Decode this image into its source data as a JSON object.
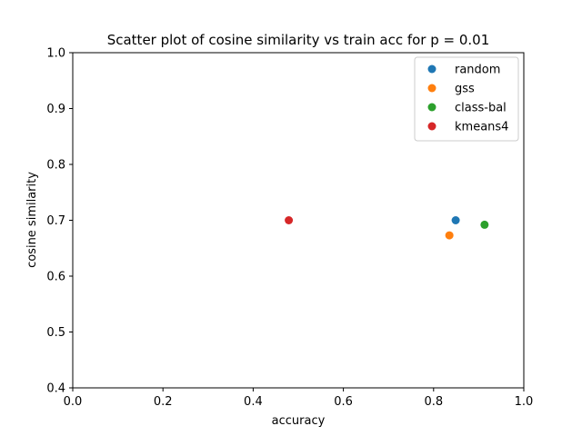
{
  "chart_data": {
    "type": "scatter",
    "title": "Scatter plot of cosine similarity vs train acc for p = 0.01",
    "xlabel": "accuracy",
    "ylabel": "cosine similarity",
    "xlim": [
      0.0,
      1.0
    ],
    "ylim": [
      0.4,
      1.0
    ],
    "xticks": [
      "0.0",
      "0.2",
      "0.4",
      "0.6",
      "0.8",
      "1.0"
    ],
    "yticks": [
      "0.4",
      "0.5",
      "0.6",
      "0.7",
      "0.8",
      "0.9",
      "1.0"
    ],
    "grid": false,
    "legend_position": "top-right",
    "series": [
      {
        "name": "random",
        "color": "#1f77b4",
        "points": [
          [
            0.849,
            0.7
          ]
        ]
      },
      {
        "name": "gss",
        "color": "#ff7f0e",
        "points": [
          [
            0.835,
            0.673
          ]
        ]
      },
      {
        "name": "class-bal",
        "color": "#2ca02c",
        "points": [
          [
            0.913,
            0.692
          ]
        ]
      },
      {
        "name": "kmeans4",
        "color": "#d62728",
        "points": [
          [
            0.479,
            0.7
          ]
        ]
      }
    ]
  }
}
